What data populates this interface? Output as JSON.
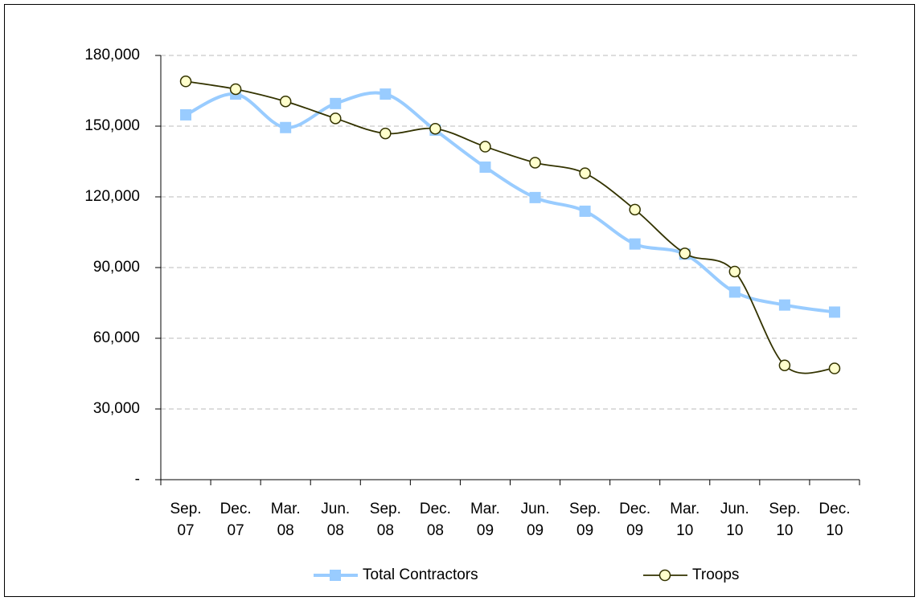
{
  "chart_data": {
    "type": "line",
    "categories": [
      "Sep. 07",
      "Dec. 07",
      "Mar. 08",
      "Jun. 08",
      "Sep. 08",
      "Dec. 08",
      "Mar. 09",
      "Jun. 09",
      "Sep. 09",
      "Dec. 09",
      "Mar. 10",
      "Jun. 10",
      "Sep. 10",
      "Dec. 10"
    ],
    "series": [
      {
        "name": "Total Contractors",
        "color": "#99ccff",
        "marker": "square",
        "values": [
          154800,
          163600,
          149400,
          159600,
          163600,
          148300,
          132600,
          119700,
          113900,
          100000,
          95700,
          79600,
          74100,
          71100
        ]
      },
      {
        "name": "Troops",
        "color": "#333300",
        "marker": "circle",
        "values": [
          169000,
          165700,
          160500,
          153300,
          146900,
          148900,
          141300,
          134500,
          130000,
          114600,
          96000,
          88300,
          48500,
          47200
        ]
      }
    ],
    "ylim": [
      0,
      180000
    ],
    "yticks": [
      {
        "value": 0,
        "label": "-"
      },
      {
        "value": 30000,
        "label": "30,000"
      },
      {
        "value": 60000,
        "label": "60,000"
      },
      {
        "value": 90000,
        "label": "90,000"
      },
      {
        "value": 120000,
        "label": "120,000"
      },
      {
        "value": 150000,
        "label": "150,000"
      },
      {
        "value": 180000,
        "label": "180,000"
      }
    ],
    "grid": true,
    "smooth": true,
    "legend": "bottom"
  }
}
